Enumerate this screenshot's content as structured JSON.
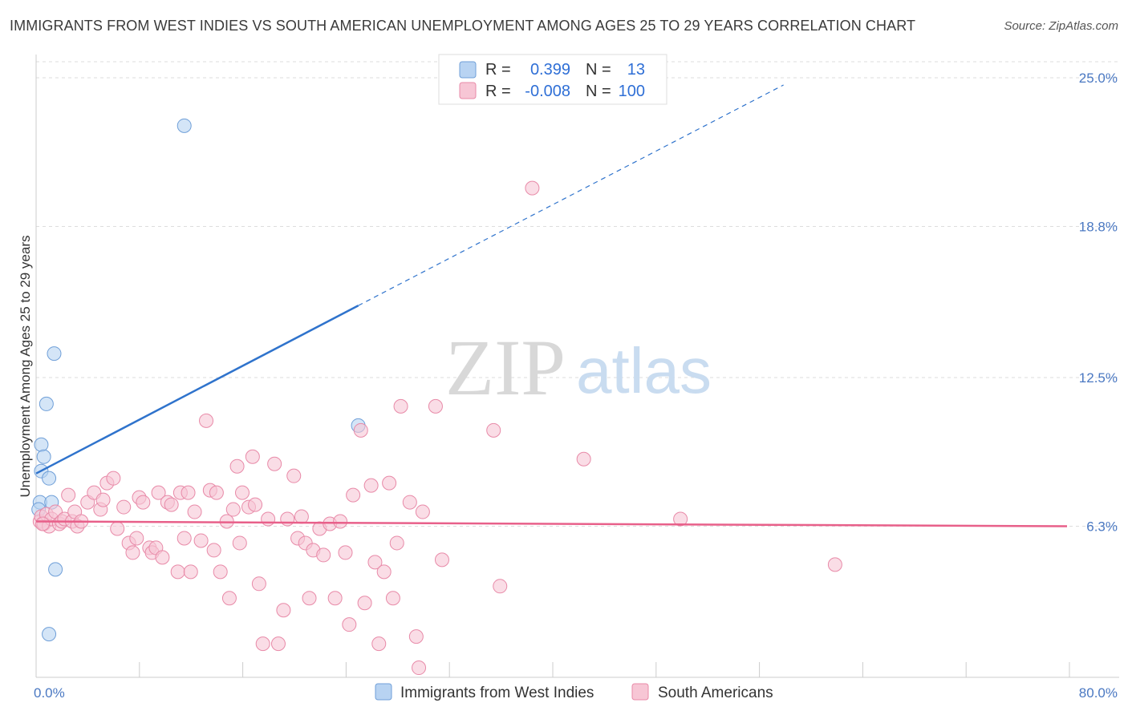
{
  "title": "IMMIGRANTS FROM WEST INDIES VS SOUTH AMERICAN UNEMPLOYMENT AMONG AGES 25 TO 29 YEARS CORRELATION CHART",
  "source": "Source: ZipAtlas.com",
  "watermark": {
    "zip": "ZIP",
    "atlas": "atlas"
  },
  "colors": {
    "blue_fill": "#b8d3f2",
    "blue_stroke": "#6f9fd8",
    "blue_line": "#2f73cc",
    "pink_fill": "#f7c6d5",
    "pink_stroke": "#e88aa8",
    "pink_line": "#e8608a",
    "grid": "#dddddd",
    "tick_text": "#4a78c2"
  },
  "legend": {
    "rows": [
      {
        "r_label": "R =",
        "r_value": "0.399",
        "n_label": "N =",
        "n_value": "13",
        "series": "blue"
      },
      {
        "r_label": "R =",
        "r_value": "-0.008",
        "n_label": "N =",
        "n_value": "100",
        "series": "pink"
      }
    ]
  },
  "chart_data": {
    "type": "scatter",
    "title": "IMMIGRANTS FROM WEST INDIES VS SOUTH AMERICAN UNEMPLOYMENT AMONG AGES 25 TO 29 YEARS CORRELATION CHART",
    "xlabel": "",
    "ylabel": "Unemployment Among Ages 25 to 29 years",
    "xlim": [
      0,
      80
    ],
    "ylim": [
      0,
      25
    ],
    "x_tick_labels": [
      {
        "value": 0,
        "label": "0.0%"
      },
      {
        "value": 80,
        "label": "80.0%"
      }
    ],
    "y_ticks": [
      {
        "value": 6.3,
        "label": "6.3%"
      },
      {
        "value": 12.5,
        "label": "12.5%"
      },
      {
        "value": 18.8,
        "label": "18.8%"
      },
      {
        "value": 25.0,
        "label": "25.0%"
      }
    ],
    "grid": true,
    "legend_position": "top-center",
    "series": [
      {
        "name": "Immigrants from West Indies",
        "color": "blue",
        "points": [
          [
            0.3,
            7.3
          ],
          [
            0.4,
            9.7
          ],
          [
            0.4,
            8.6
          ],
          [
            0.6,
            9.2
          ],
          [
            0.8,
            11.4
          ],
          [
            1.0,
            8.3
          ],
          [
            1.2,
            7.3
          ],
          [
            1.4,
            13.5
          ],
          [
            1.5,
            4.5
          ],
          [
            1.0,
            1.8
          ],
          [
            11.5,
            23.0
          ],
          [
            25.0,
            10.5
          ],
          [
            0.2,
            7.0
          ]
        ],
        "trend": {
          "x1": 0,
          "y1": 8.5,
          "x2": 25,
          "y2": 15.5,
          "dashed_to_x": 58,
          "dashed_to_y": 24.7
        }
      },
      {
        "name": "South Americans",
        "color": "pink",
        "points": [
          [
            0.3,
            6.5
          ],
          [
            0.4,
            6.7
          ],
          [
            0.6,
            6.4
          ],
          [
            0.8,
            6.8
          ],
          [
            1.0,
            6.3
          ],
          [
            1.2,
            6.6
          ],
          [
            1.5,
            6.9
          ],
          [
            1.8,
            6.4
          ],
          [
            2.0,
            6.5
          ],
          [
            2.2,
            6.6
          ],
          [
            2.5,
            7.6
          ],
          [
            2.8,
            6.5
          ],
          [
            3.0,
            6.9
          ],
          [
            3.2,
            6.3
          ],
          [
            3.5,
            6.5
          ],
          [
            4.0,
            7.3
          ],
          [
            4.5,
            7.7
          ],
          [
            5.0,
            7.0
          ],
          [
            5.2,
            7.4
          ],
          [
            5.5,
            8.1
          ],
          [
            6.0,
            8.3
          ],
          [
            6.3,
            6.2
          ],
          [
            6.8,
            7.1
          ],
          [
            7.2,
            5.6
          ],
          [
            7.5,
            5.2
          ],
          [
            7.8,
            5.8
          ],
          [
            8.0,
            7.5
          ],
          [
            8.3,
            7.3
          ],
          [
            8.8,
            5.4
          ],
          [
            9.0,
            5.2
          ],
          [
            9.3,
            5.4
          ],
          [
            9.5,
            7.7
          ],
          [
            9.8,
            5.0
          ],
          [
            10.2,
            7.3
          ],
          [
            10.5,
            7.2
          ],
          [
            11.0,
            4.4
          ],
          [
            11.2,
            7.7
          ],
          [
            11.5,
            5.8
          ],
          [
            11.8,
            7.7
          ],
          [
            12.0,
            4.4
          ],
          [
            12.3,
            6.9
          ],
          [
            12.8,
            5.7
          ],
          [
            13.2,
            10.7
          ],
          [
            13.5,
            7.8
          ],
          [
            13.8,
            5.3
          ],
          [
            14.0,
            7.7
          ],
          [
            14.3,
            4.4
          ],
          [
            14.8,
            6.5
          ],
          [
            15.0,
            3.3
          ],
          [
            15.3,
            7.0
          ],
          [
            15.6,
            8.8
          ],
          [
            15.8,
            5.6
          ],
          [
            16.0,
            7.7
          ],
          [
            16.5,
            7.1
          ],
          [
            16.8,
            9.2
          ],
          [
            17.0,
            7.2
          ],
          [
            17.3,
            3.9
          ],
          [
            17.6,
            1.4
          ],
          [
            18.0,
            6.6
          ],
          [
            18.5,
            8.9
          ],
          [
            18.8,
            1.4
          ],
          [
            19.2,
            2.8
          ],
          [
            19.5,
            6.6
          ],
          [
            20.0,
            8.4
          ],
          [
            20.3,
            5.8
          ],
          [
            20.6,
            6.7
          ],
          [
            20.9,
            5.6
          ],
          [
            21.2,
            3.3
          ],
          [
            21.5,
            5.3
          ],
          [
            22.0,
            6.2
          ],
          [
            22.3,
            5.1
          ],
          [
            22.8,
            6.4
          ],
          [
            23.2,
            3.3
          ],
          [
            23.6,
            6.5
          ],
          [
            24.0,
            5.2
          ],
          [
            24.3,
            2.2
          ],
          [
            24.6,
            7.6
          ],
          [
            25.2,
            10.3
          ],
          [
            25.5,
            3.1
          ],
          [
            26.0,
            8.0
          ],
          [
            26.3,
            4.8
          ],
          [
            26.6,
            1.4
          ],
          [
            27.0,
            4.4
          ],
          [
            27.4,
            8.1
          ],
          [
            27.7,
            3.3
          ],
          [
            28.0,
            5.6
          ],
          [
            28.3,
            11.3
          ],
          [
            29.0,
            7.3
          ],
          [
            29.5,
            1.7
          ],
          [
            30.0,
            6.9
          ],
          [
            31.0,
            11.3
          ],
          [
            31.5,
            4.9
          ],
          [
            35.5,
            10.3
          ],
          [
            36.0,
            3.8
          ],
          [
            38.5,
            20.4
          ],
          [
            42.5,
            9.1
          ],
          [
            29.7,
            0.4
          ],
          [
            50.0,
            6.6
          ],
          [
            62.0,
            4.7
          ],
          [
            0.5,
            6.4
          ]
        ],
        "trend": {
          "x1": 0,
          "y1": 6.5,
          "x2": 80,
          "y2": 6.3
        }
      }
    ]
  }
}
